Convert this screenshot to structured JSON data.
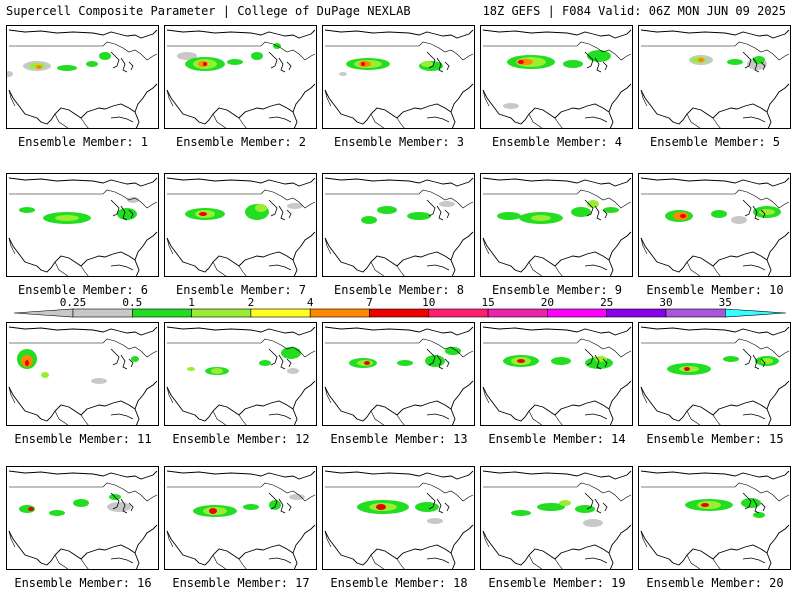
{
  "header": {
    "left": "Supercell Composite Parameter | College of DuPage NEXLAB",
    "right": "18Z GEFS | F084 Valid: 06Z MON JUN 09 2025"
  },
  "colors": {
    "background": "#ffffff",
    "border": "#000000",
    "land": "#ffffff"
  },
  "colorbar": {
    "levels": [
      "0.25",
      "0.5",
      "1",
      "2",
      "4",
      "7",
      "10",
      "15",
      "20",
      "25",
      "30",
      "35"
    ],
    "colors": [
      "#c8c8c8",
      "#22dd22",
      "#99ee33",
      "#ffff22",
      "#ff8800",
      "#ee0000",
      "#ff1f6f",
      "#ee22aa",
      "#ff00ff",
      "#8800ee",
      "#aa55dd",
      "#33ffff"
    ]
  },
  "members": [
    {
      "label": "Ensemble Member: 1"
    },
    {
      "label": "Ensemble Member: 2"
    },
    {
      "label": "Ensemble Member: 3"
    },
    {
      "label": "Ensemble Member: 4"
    },
    {
      "label": "Ensemble Member: 5"
    },
    {
      "label": "Ensemble Member: 6"
    },
    {
      "label": "Ensemble Member: 7"
    },
    {
      "label": "Ensemble Member: 8"
    },
    {
      "label": "Ensemble Member: 9"
    },
    {
      "label": "Ensemble Member: 10"
    },
    {
      "label": "Ensemble Member: 11"
    },
    {
      "label": "Ensemble Member: 12"
    },
    {
      "label": "Ensemble Member: 13"
    },
    {
      "label": "Ensemble Member: 14"
    },
    {
      "label": "Ensemble Member: 15"
    },
    {
      "label": "Ensemble Member: 16"
    },
    {
      "label": "Ensemble Member: 17"
    },
    {
      "label": "Ensemble Member: 18"
    },
    {
      "label": "Ensemble Member: 19"
    },
    {
      "label": "Ensemble Member: 20"
    }
  ]
}
